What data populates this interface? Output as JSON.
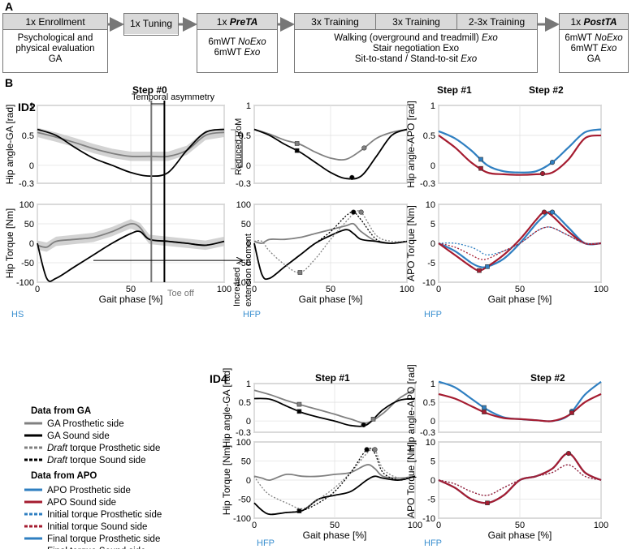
{
  "panel_a": {
    "letter": "A",
    "stages": [
      {
        "header": "1x Enrollment",
        "lines": [
          "Psychological and",
          "physical evaluation",
          "GA"
        ]
      },
      {
        "header": "1x Tuning",
        "lines": []
      },
      {
        "header_prefix": "1x ",
        "header_em": "PreTA",
        "lines_mixed": [
          [
            "6mWT ",
            "NoExo"
          ],
          [
            "6mWT ",
            "Exo"
          ]
        ]
      },
      {
        "headers": [
          "3x Training",
          "3x Training",
          "2-3x Training"
        ],
        "lines_mixed": [
          [
            "Walking (overground and treadmill) ",
            "Exo"
          ],
          [
            "Stair negotiation Exo",
            ""
          ],
          [
            "Sit-to-stand / Stand-to-sit ",
            "Exo"
          ]
        ]
      },
      {
        "header_prefix": "1x ",
        "header_em": "PostTA",
        "lines_mixed": [
          [
            "6mWT ",
            "NoExo"
          ],
          [
            "6mWT ",
            "Exo"
          ],
          [
            "GA",
            ""
          ]
        ]
      }
    ]
  },
  "panel_b": {
    "letter": "B",
    "subjects": [
      "ID2",
      "ID4"
    ],
    "step_titles": {
      "s0": "Step #0",
      "s1": "Step #1",
      "s2": "Step #2"
    },
    "annotations": {
      "temporal_asymmetry": "Temporal asymmetry",
      "reduced_rom": "Reduced RoM",
      "increased_extension": [
        "Increased",
        "extension moment"
      ],
      "toe_off": "Toe off",
      "hs": "HS",
      "hfp": "HFP"
    },
    "axis_labels": {
      "gait_phase": "Gait phase [%]",
      "hip_angle_ga": "Hip angle-GA [rad]",
      "hip_angle_apo": "Hip angle-APO [rad]",
      "hip_torque": "Hip Torque [Nm]",
      "apo_torque": "APO Torque [Nm]"
    },
    "colors": {
      "ga_prosthetic": "#808080",
      "ga_sound": "#000000",
      "apo_prosthetic": "#2f7fc1",
      "apo_sound": "#a51c30",
      "band": "#c8c8c8",
      "hs_hfp": "#3a8fd0"
    }
  },
  "legend": {
    "ga_title": "Data from GA",
    "ga_items": [
      {
        "text": "GA Prosthetic side",
        "em": ""
      },
      {
        "text": "GA Sound side",
        "em": ""
      },
      {
        "em": "Draft",
        "text": " torque Prosthetic side"
      },
      {
        "em": "Draft",
        "text": " torque Sound side"
      }
    ],
    "apo_title": "Data from APO",
    "apo_items": [
      {
        "text": "APO Prosthetic side"
      },
      {
        "text": "APO Sound side"
      },
      {
        "text": "Initial torque Prosthetic side"
      },
      {
        "text": "Initial torque Sound side"
      },
      {
        "text": "Final torque Prosthetic side"
      },
      {
        "text": "Final torque Sound side"
      }
    ]
  },
  "chart_data": [
    {
      "id": "ID2-step0-angle",
      "type": "line",
      "xlabel": "Gait phase [%]",
      "ylabel": "Hip angle-GA [rad]",
      "xlim": [
        0,
        100
      ],
      "ylim": [
        -0.3,
        1.0
      ],
      "x": [
        0,
        10,
        20,
        30,
        40,
        50,
        60,
        70,
        80,
        90,
        100
      ],
      "series": [
        {
          "name": "GA Prosthetic side",
          "values": [
            0.55,
            0.47,
            0.38,
            0.28,
            0.2,
            0.15,
            0.15,
            0.15,
            0.25,
            0.5,
            0.55
          ]
        },
        {
          "name": "GA Sound side",
          "values": [
            0.6,
            0.5,
            0.3,
            0.12,
            0.0,
            -0.12,
            -0.18,
            -0.12,
            0.25,
            0.55,
            0.6
          ]
        }
      ]
    },
    {
      "id": "ID2-step0-torque",
      "type": "line",
      "xlabel": "Gait phase [%]",
      "ylabel": "Hip Torque [Nm]",
      "xlim": [
        0,
        100
      ],
      "ylim": [
        -100,
        100
      ],
      "x": [
        0,
        5,
        10,
        20,
        30,
        40,
        50,
        55,
        60,
        70,
        80,
        90,
        100
      ],
      "series": [
        {
          "name": "GA Prosthetic side",
          "values": [
            -5,
            -10,
            5,
            10,
            15,
            30,
            50,
            40,
            10,
            5,
            0,
            -5,
            5
          ]
        },
        {
          "name": "GA Sound side",
          "values": [
            0,
            -90,
            -90,
            -60,
            -30,
            0,
            25,
            30,
            10,
            5,
            0,
            -5,
            5
          ]
        }
      ]
    },
    {
      "id": "ID2-step1-angle",
      "type": "line",
      "xlabel": "Gait phase [%]",
      "ylabel": "Hip angle-GA [rad]",
      "xlim": [
        0,
        100
      ],
      "ylim": [
        -0.3,
        1.0
      ],
      "x": [
        0,
        10,
        20,
        30,
        40,
        50,
        60,
        70,
        80,
        90,
        100
      ],
      "series": [
        {
          "name": "GA Prosthetic side",
          "values": [
            0.6,
            0.52,
            0.42,
            0.35,
            0.22,
            0.12,
            0.1,
            0.25,
            0.45,
            0.55,
            0.6
          ]
        },
        {
          "name": "GA Sound side",
          "values": [
            0.6,
            0.5,
            0.35,
            0.22,
            0.05,
            -0.12,
            -0.22,
            -0.18,
            0.15,
            0.5,
            0.6
          ]
        }
      ]
    },
    {
      "id": "ID2-step1-torque",
      "type": "line",
      "xlabel": "Gait phase [%]",
      "ylabel": "Hip Torque [Nm]",
      "xlim": [
        0,
        100
      ],
      "ylim": [
        -100,
        100
      ],
      "x": [
        0,
        5,
        10,
        20,
        30,
        40,
        50,
        60,
        65,
        70,
        80,
        90,
        100
      ],
      "series": [
        {
          "name": "GA Prosthetic side",
          "values": [
            5,
            0,
            10,
            10,
            15,
            25,
            35,
            45,
            50,
            30,
            5,
            0,
            5
          ]
        },
        {
          "name": "GA Sound side",
          "values": [
            0,
            -80,
            -90,
            -60,
            -30,
            0,
            20,
            35,
            25,
            10,
            5,
            0,
            5
          ]
        },
        {
          "name": "Draft torque Prosthetic side",
          "values": [
            5,
            5,
            -20,
            -55,
            -75,
            -40,
            10,
            55,
            75,
            80,
            20,
            5,
            5
          ]
        },
        {
          "name": "Draft torque Sound side",
          "values": [
            0,
            -80,
            -90,
            -60,
            -30,
            0,
            30,
            70,
            80,
            60,
            10,
            0,
            5
          ]
        }
      ]
    },
    {
      "id": "ID2-step2-angle",
      "type": "line",
      "xlabel": "Gait phase [%]",
      "ylabel": "Hip angle-APO [rad]",
      "xlim": [
        0,
        100
      ],
      "ylim": [
        -0.3,
        1.0
      ],
      "x": [
        0,
        10,
        20,
        30,
        40,
        50,
        60,
        70,
        80,
        90,
        100
      ],
      "series": [
        {
          "name": "APO Prosthetic side",
          "values": [
            0.57,
            0.45,
            0.25,
            0.0,
            -0.1,
            -0.12,
            -0.1,
            0.05,
            0.3,
            0.55,
            0.6
          ]
        },
        {
          "name": "APO Sound side",
          "values": [
            0.5,
            0.3,
            0.05,
            -0.12,
            -0.15,
            -0.16,
            -0.15,
            -0.12,
            0.1,
            0.45,
            0.5
          ]
        }
      ]
    },
    {
      "id": "ID2-step2-torque",
      "type": "line",
      "xlabel": "Gait phase [%]",
      "ylabel": "APO Torque [Nm]",
      "xlim": [
        0,
        100
      ],
      "ylim": [
        -10,
        10
      ],
      "x": [
        0,
        10,
        20,
        25,
        30,
        40,
        50,
        60,
        65,
        70,
        80,
        90,
        100
      ],
      "series": [
        {
          "name": "APO Prosthetic side",
          "values": [
            0,
            -2,
            -5,
            -6,
            -6,
            -4,
            0,
            5,
            7,
            8,
            4,
            0,
            0
          ]
        },
        {
          "name": "APO Sound side",
          "values": [
            0,
            -3,
            -6,
            -7,
            -6,
            -3,
            1,
            6,
            8,
            7,
            3,
            0,
            0
          ]
        },
        {
          "name": "Initial torque Prosthetic side",
          "values": [
            0,
            0,
            -1,
            -2,
            -3,
            -2,
            0,
            3,
            4,
            4,
            2,
            0,
            0
          ]
        },
        {
          "name": "Initial torque Sound side",
          "values": [
            0,
            -1,
            -3,
            -4,
            -4,
            -2,
            0,
            3,
            4,
            4,
            2,
            0,
            0
          ]
        }
      ]
    },
    {
      "id": "ID4-step1-angle",
      "type": "line",
      "xlabel": "Gait phase [%]",
      "ylabel": "Hip angle-GA [rad]",
      "xlim": [
        0,
        100
      ],
      "ylim": [
        -0.3,
        1.0
      ],
      "x": [
        0,
        10,
        20,
        30,
        40,
        50,
        60,
        70,
        80,
        90,
        100
      ],
      "series": [
        {
          "name": "GA Prosthetic side",
          "values": [
            0.82,
            0.7,
            0.55,
            0.42,
            0.3,
            0.18,
            0.05,
            -0.05,
            0.2,
            0.6,
            0.85
          ]
        },
        {
          "name": "GA Sound side",
          "values": [
            0.6,
            0.58,
            0.4,
            0.22,
            0.1,
            0.0,
            -0.12,
            -0.1,
            0.3,
            0.55,
            0.6
          ]
        }
      ]
    },
    {
      "id": "ID4-step1-torque",
      "type": "line",
      "xlabel": "Gait phase [%]",
      "ylabel": "Hip Torque [Nm]",
      "xlim": [
        0,
        100
      ],
      "ylim": [
        -100,
        100
      ],
      "x": [
        0,
        5,
        10,
        20,
        30,
        40,
        50,
        60,
        70,
        75,
        80,
        90,
        100
      ],
      "series": [
        {
          "name": "GA Prosthetic side",
          "values": [
            10,
            5,
            0,
            15,
            10,
            10,
            15,
            20,
            40,
            30,
            10,
            5,
            10
          ]
        },
        {
          "name": "GA Sound side",
          "values": [
            -60,
            -80,
            -90,
            -85,
            -80,
            -50,
            -40,
            -30,
            0,
            10,
            5,
            0,
            10
          ]
        },
        {
          "name": "Draft torque Prosthetic side",
          "values": [
            10,
            -20,
            -40,
            -60,
            -75,
            -50,
            -20,
            20,
            70,
            80,
            30,
            5,
            10
          ]
        },
        {
          "name": "Draft torque Sound side",
          "values": [
            -60,
            -80,
            -90,
            -85,
            -80,
            -60,
            -30,
            20,
            80,
            70,
            20,
            0,
            10
          ]
        }
      ]
    },
    {
      "id": "ID4-step2-angle",
      "type": "line",
      "xlabel": "Gait phase [%]",
      "ylabel": "Hip angle-APO [rad]",
      "xlim": [
        0,
        100
      ],
      "ylim": [
        -0.3,
        1.0
      ],
      "x": [
        0,
        10,
        20,
        30,
        40,
        50,
        60,
        70,
        80,
        90,
        100
      ],
      "series": [
        {
          "name": "APO Prosthetic side",
          "values": [
            1.05,
            0.9,
            0.6,
            0.3,
            0.1,
            0.05,
            0.02,
            0.0,
            0.15,
            0.7,
            1.05
          ]
        },
        {
          "name": "APO Sound side",
          "values": [
            0.72,
            0.6,
            0.4,
            0.2,
            0.08,
            0.05,
            0.02,
            0.0,
            0.15,
            0.5,
            0.72
          ]
        }
      ]
    },
    {
      "id": "ID4-step2-torque",
      "type": "line",
      "xlabel": "Gait phase [%]",
      "ylabel": "APO Torque [Nm]",
      "xlim": [
        0,
        100
      ],
      "ylim": [
        -10,
        10
      ],
      "x": [
        0,
        10,
        20,
        30,
        40,
        50,
        60,
        70,
        80,
        90,
        100
      ],
      "series": [
        {
          "name": "APO Prosthetic side",
          "values": [
            0,
            -2,
            -5,
            -6,
            -4,
            0,
            1,
            3,
            7,
            2,
            0
          ]
        },
        {
          "name": "APO Sound side",
          "values": [
            0,
            -2,
            -5,
            -6,
            -4,
            0,
            1,
            3,
            7,
            2,
            0
          ]
        },
        {
          "name": "Initial torque Prosthetic side",
          "values": [
            0,
            -1,
            -3,
            -4,
            -2,
            0,
            1,
            2,
            4,
            1,
            0
          ]
        },
        {
          "name": "Initial torque Sound side",
          "values": [
            0,
            -1,
            -3,
            -4,
            -2,
            0,
            1,
            2,
            4,
            1,
            0
          ]
        }
      ]
    }
  ]
}
